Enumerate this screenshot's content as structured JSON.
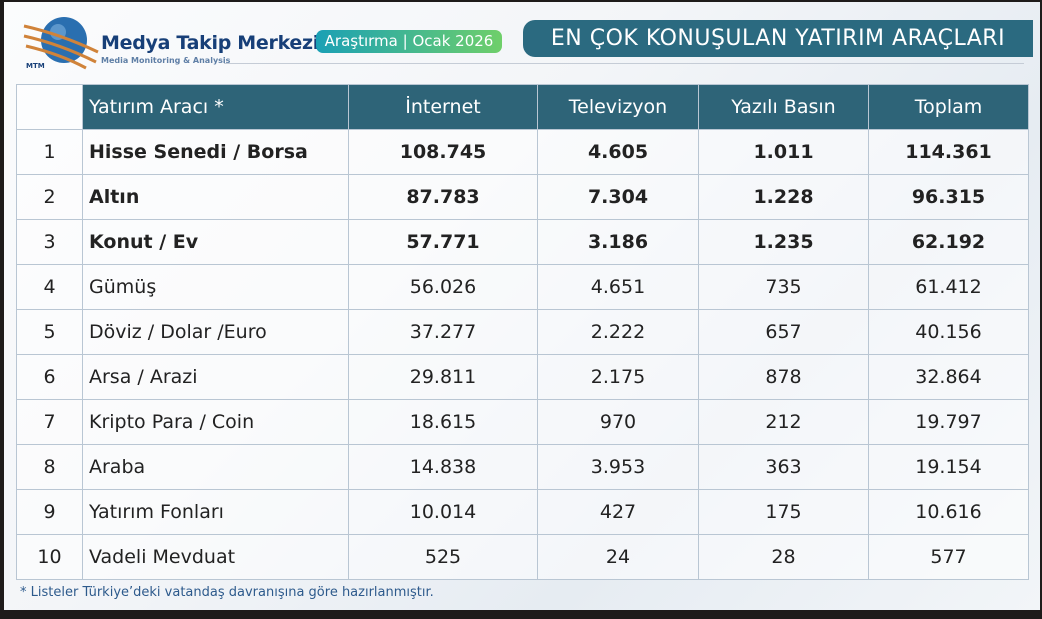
{
  "header": {
    "brand": "Medya Takip Merkezi",
    "brand_sub": "Media Monitoring & Analysis",
    "logo_text": "MTM",
    "badge": "Araştırma | Ocak 2026",
    "title": "EN ÇOK KONUŞULAN YATIRIM ARAÇLARI",
    "accent": "#2e6478"
  },
  "table": {
    "columns": [
      "Yatırım Aracı *",
      "İnternet",
      "Televizyon",
      "Yazılı Basın",
      "Toplam"
    ],
    "rows": [
      [
        "1",
        "Hisse Senedi / Borsa",
        "108.745",
        "4.605",
        "1.011",
        "114.361"
      ],
      [
        "2",
        "Altın",
        "87.783",
        "7.304",
        "1.228",
        "96.315"
      ],
      [
        "3",
        "Konut / Ev",
        "57.771",
        "3.186",
        "1.235",
        "62.192"
      ],
      [
        "4",
        "Gümüş",
        "56.026",
        "4.651",
        "735",
        "61.412"
      ],
      [
        "5",
        "Döviz / Dolar /Euro",
        "37.277",
        "2.222",
        "657",
        "40.156"
      ],
      [
        "6",
        "Arsa / Arazi",
        "29.811",
        "2.175",
        "878",
        "32.864"
      ],
      [
        "7",
        "Kripto Para / Coin",
        "18.615",
        "970",
        "212",
        "19.797"
      ],
      [
        "8",
        "Araba",
        "14.838",
        "3.953",
        "363",
        "19.154"
      ],
      [
        "9",
        "Yatırım Fonları",
        "10.014",
        "427",
        "175",
        "10.616"
      ],
      [
        "10",
        "Vadeli Mevduat",
        "525",
        "24",
        "28",
        "577"
      ]
    ]
  },
  "note": "* Listeler Türkiye’deki vatandaş davranışına göre hazırlanmıştır."
}
